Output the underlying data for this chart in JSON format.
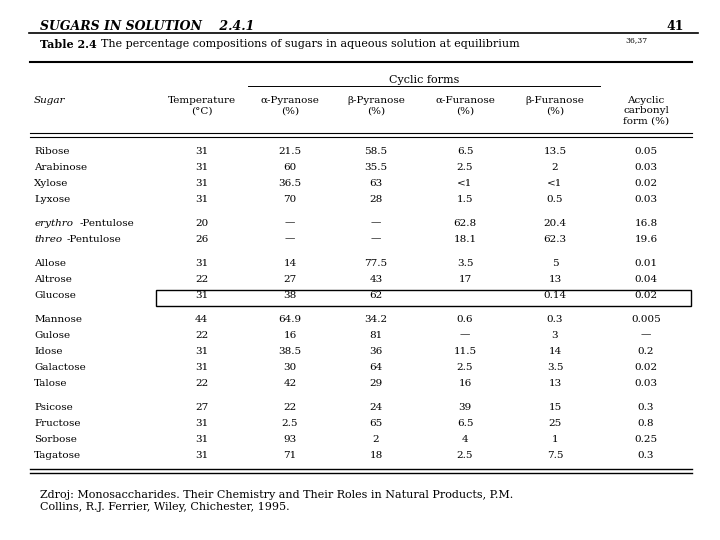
{
  "header_title": "SUGARS IN SOLUTION    2.4.1",
  "page_number": "41",
  "table_title_bold": "Table 2.4",
  "table_title_rest": "  The percentage compositions of sugars in aqueous solution at equilibrium",
  "table_title_superscript": "36,37",
  "cyclic_forms_label": "Cyclic forms",
  "col_headers": [
    "Sugar",
    "Temperature\n(°C)",
    "α-Pyranose\n(%)",
    "β-Pyranose\n(%)",
    "α-Furanose\n(%)",
    "β-Furanose\n(%)",
    "Acyclic\ncarbonyl\nform (%)"
  ],
  "rows": [
    [
      "Ribose",
      "31",
      "21.5",
      "58.5",
      "6.5",
      "13.5",
      "0.05"
    ],
    [
      "Arabinose",
      "31",
      "60",
      "35.5",
      "2.5",
      "2",
      "0.03"
    ],
    [
      "Xylose",
      "31",
      "36.5",
      "63",
      "<1",
      "<1",
      "0.02"
    ],
    [
      "Lyxose",
      "31",
      "70",
      "28",
      "1.5",
      "0.5",
      "0.03"
    ],
    [
      "erythro-Pentulose",
      "20",
      "—",
      "—",
      "62.8",
      "20.4",
      "16.8"
    ],
    [
      "threo-Pentulose",
      "26",
      "—",
      "—",
      "18.1",
      "62.3",
      "19.6"
    ],
    [
      "Allose",
      "31",
      "14",
      "77.5",
      "3.5",
      "5",
      "0.01"
    ],
    [
      "Altrose",
      "22",
      "27",
      "43",
      "17",
      "13",
      "0.04"
    ],
    [
      "Glucose",
      "31",
      "38",
      "62",
      "",
      "0.14",
      "0.02"
    ],
    [
      "Mannose",
      "44",
      "64.9",
      "34.2",
      "0.6",
      "0.3",
      "0.005"
    ],
    [
      "Gulose",
      "22",
      "16",
      "81",
      "—",
      "3",
      "—"
    ],
    [
      "Idose",
      "31",
      "38.5",
      "36",
      "11.5",
      "14",
      "0.2"
    ],
    [
      "Galactose",
      "31",
      "30",
      "64",
      "2.5",
      "3.5",
      "0.02"
    ],
    [
      "Talose",
      "22",
      "42",
      "29",
      "16",
      "13",
      "0.03"
    ],
    [
      "Psicose",
      "27",
      "22",
      "24",
      "39",
      "15",
      "0.3"
    ],
    [
      "Fructose",
      "31",
      "2.5",
      "65",
      "6.5",
      "25",
      "0.8"
    ],
    [
      "Sorbose",
      "31",
      "93",
      "2",
      "4",
      "1",
      "0.25"
    ],
    [
      "Tagatose",
      "31",
      "71",
      "18",
      "2.5",
      "7.5",
      "0.3"
    ]
  ],
  "group_separators_before": [
    4,
    6,
    9,
    14
  ],
  "glucose_row_index": 8,
  "italic_prefix_rows": [
    4,
    5
  ],
  "caption": "Zdroj: Monosaccharides. Their Chemistry and Their Roles in Natural Products, P.M.\nCollins, R.J. Ferrier, Wiley, Chichester, 1995.",
  "bg_color": "#ffffff"
}
